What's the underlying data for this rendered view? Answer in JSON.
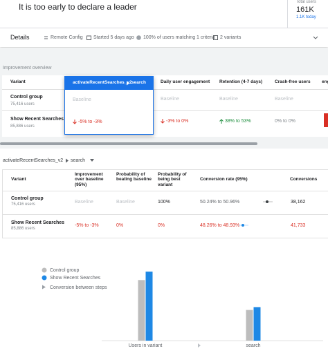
{
  "header": {
    "status": "It is too early to declare a leader",
    "total_users_label": "Total users",
    "total_users": "161K",
    "today": "1.1K today"
  },
  "details": {
    "title": "Details",
    "items": [
      "Remote Config",
      "Started 5 days ago",
      "100% of users matching 1 criteria",
      "2 variants"
    ]
  },
  "overview": {
    "title": "Improvement overview",
    "columns": [
      "Variant",
      "activateRecentSearches_v2",
      "search",
      "Daily user engagement",
      "Retention (4-7 days)",
      "Crash-free users",
      "eng"
    ],
    "rows": [
      {
        "variant": "Control group",
        "users": "75,416 users",
        "cells": [
          "Baseline",
          "Baseline",
          "Baseline",
          "Baseline"
        ]
      },
      {
        "variant": "Show Recent Searches",
        "users": "85,886 users",
        "cells": [
          "-5% to -3%",
          "-3% to 0%",
          "38% to 53%",
          "0% to 0%"
        ]
      }
    ]
  },
  "goal": {
    "title": "activateRecentSearches_v2",
    "step": "search",
    "columns": [
      "Variant",
      "Improvement over baseline (95%)",
      "Probability of beating baseline",
      "Probability of being best variant",
      "Conversion rate (95%)",
      "Conversions"
    ],
    "rows": [
      {
        "variant": "Control group",
        "users": "75,416 users",
        "cells": [
          "Baseline",
          "Baseline",
          "100%",
          "50.24% to 50.96%",
          "38,162"
        ]
      },
      {
        "variant": "Show Recent Searches",
        "users": "85,886 users",
        "cells": [
          "-5% to -3%",
          "0%",
          "0%",
          "48.26% to 48.93%",
          "41,733"
        ]
      }
    ]
  },
  "chart_data": {
    "type": "bar",
    "categories": [
      "Users in variant",
      "search"
    ],
    "series": [
      {
        "name": "Control group",
        "color": "#bdbdbd",
        "values": [
          75416,
          38162
        ]
      },
      {
        "name": "Show Recent Searches",
        "color": "#1e88e5",
        "values": [
          85886,
          41733
        ]
      }
    ],
    "step_legend": "Conversion between steps"
  }
}
